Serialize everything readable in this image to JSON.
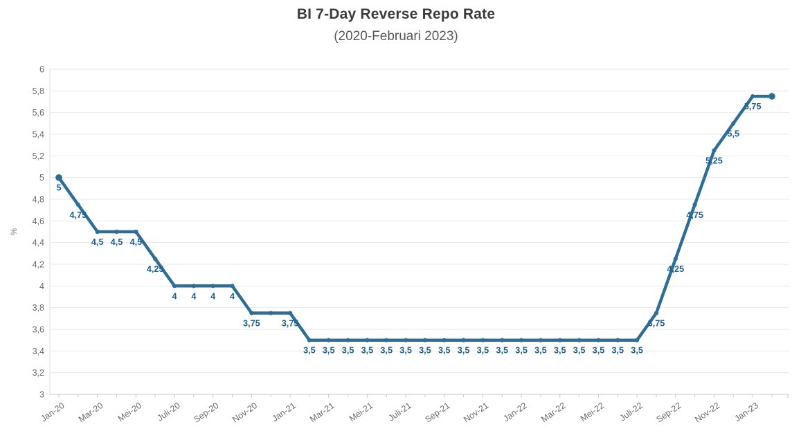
{
  "header": {
    "title": "BI 7-Day Reverse Repo Rate",
    "subtitle": "(2020-Februari 2023)"
  },
  "chart_data": {
    "type": "line",
    "title": "BI 7-Day Reverse Repo Rate",
    "subtitle": "(2020-Februari 2023)",
    "ylabel": "%",
    "ylim": [
      3,
      6
    ],
    "ytick_step": 0.2,
    "ytick_labels": [
      "3",
      "3,2",
      "3,4",
      "3,6",
      "3,8",
      "4",
      "4,2",
      "4,4",
      "4,6",
      "4,8",
      "5",
      "5,2",
      "5,4",
      "5,6",
      "5,8",
      "6"
    ],
    "xtick_labels": [
      "Jan-20",
      "Mar-20",
      "Mei-20",
      "Juli-20",
      "Sep-20",
      "Nov-20",
      "Jan-21",
      "Mar-21",
      "Mei-21",
      "Juli-21",
      "Sep-21",
      "Nov-21",
      "Jan-22",
      "Mar-22",
      "Mei-22",
      "Juli-22",
      "Sep-22",
      "Nov-22",
      "Jan-23"
    ],
    "xtick_month_interval": 2,
    "num_points": 38,
    "values": [
      5,
      4.75,
      4.5,
      4.5,
      4.5,
      4.25,
      4,
      4,
      4,
      4,
      3.75,
      3.75,
      3.75,
      3.5,
      3.5,
      3.5,
      3.5,
      3.5,
      3.5,
      3.5,
      3.5,
      3.5,
      3.5,
      3.5,
      3.5,
      3.5,
      3.5,
      3.5,
      3.5,
      3.5,
      3.5,
      3.75,
      4.25,
      4.75,
      5.25,
      5.5,
      5.75,
      5.75
    ],
    "point_labels": [
      "5",
      "4,75",
      "4,5",
      "4,5",
      "4,5",
      "4,25",
      "4",
      "4",
      "4",
      "4",
      "3,75",
      "",
      "3,75",
      "3,5",
      "3,5",
      "3,5",
      "3,5",
      "3,5",
      "3,5",
      "3,5",
      "3,5",
      "3,5",
      "3,5",
      "3,5",
      "3,5",
      "3,5",
      "3,5",
      "3,5",
      "3,5",
      "3,5",
      "3,5",
      "3,75",
      "4,25",
      "4,75",
      "5,25",
      "5,5",
      "5,75",
      ""
    ],
    "grid": "horizontal",
    "legend": "none",
    "colors": {
      "line": "#2e6d96",
      "point_label": "#1e608f",
      "axis_text": "#6b6b6b",
      "unit_text": "#7a7a7a",
      "gridline": "#e9e9e9",
      "axis_line": "#c9c9c9"
    }
  }
}
